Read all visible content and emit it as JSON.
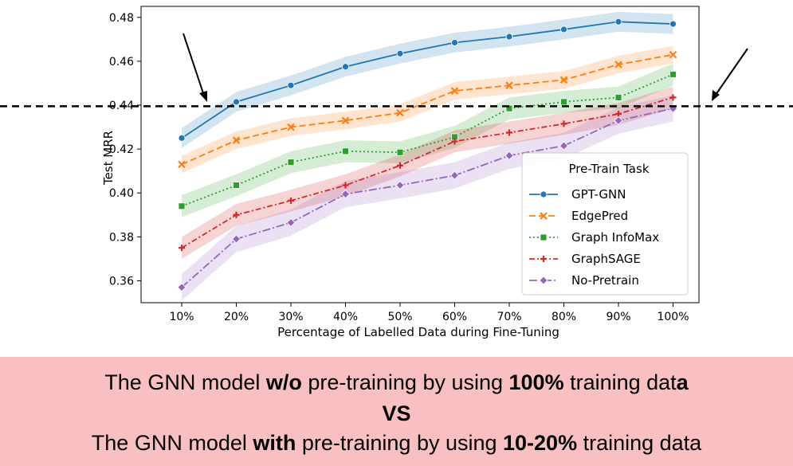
{
  "chart_data": {
    "type": "line",
    "xlabel": "Percentage of Labelled Data during Fine-Tuning",
    "ylabel": "Test MRR",
    "categories": [
      "10%",
      "20%",
      "30%",
      "40%",
      "50%",
      "60%",
      "70%",
      "80%",
      "90%",
      "100%"
    ],
    "ylim": [
      0.35,
      0.485
    ],
    "yticks": [
      "0.36",
      "0.38",
      "0.40",
      "0.42",
      "0.44",
      "0.46",
      "0.48"
    ],
    "ytick_values": [
      0.36,
      0.38,
      0.4,
      0.42,
      0.44,
      0.46,
      0.48
    ],
    "legend_title": "Pre-Train Task",
    "legend_position": "lower-right",
    "reference_line": 0.4395,
    "series": [
      {
        "name": "GPT-GNN",
        "color": "#1f77b4",
        "marker": "circle",
        "dash": "solid",
        "values": [
          0.425,
          0.4415,
          0.449,
          0.4575,
          0.4635,
          0.4685,
          0.4712,
          0.4745,
          0.478,
          0.477
        ],
        "band": 0.0045
      },
      {
        "name": "EdgePred",
        "color": "#ff7f0e",
        "marker": "x",
        "dash": "dashed",
        "values": [
          0.413,
          0.424,
          0.43,
          0.433,
          0.4365,
          0.4465,
          0.449,
          0.4515,
          0.4585,
          0.463
        ],
        "band": 0.004
      },
      {
        "name": "Graph InfoMax",
        "color": "#2ca02c",
        "marker": "square",
        "dash": "dotted",
        "values": [
          0.394,
          0.4035,
          0.414,
          0.419,
          0.4185,
          0.4255,
          0.4385,
          0.4415,
          0.4435,
          0.454
        ],
        "band": 0.005
      },
      {
        "name": "GraphSAGE",
        "color": "#d62728",
        "marker": "plus",
        "dash": "dashdot",
        "values": [
          0.375,
          0.39,
          0.3965,
          0.4035,
          0.4125,
          0.4235,
          0.4275,
          0.4315,
          0.436,
          0.4435
        ],
        "band": 0.005
      },
      {
        "name": "No-Pretrain",
        "color": "#9467bd",
        "marker": "diamond",
        "dash": "dashdot2",
        "values": [
          0.357,
          0.379,
          0.3865,
          0.3995,
          0.4035,
          0.408,
          0.417,
          0.4215,
          0.433,
          0.4385
        ],
        "band": 0.006
      }
    ]
  },
  "caption": {
    "line1_a": "The GNN model ",
    "line1_b": "w/o",
    "line1_c": " pre-training by using ",
    "line1_d": "100%",
    "line1_e": " training dat",
    "line1_f": "a",
    "line2": "VS",
    "line3_a": "The GNN model ",
    "line3_b": "with",
    "line3_c": " pre-training by using ",
    "line3_d": "10-20%",
    "line3_e": " training data"
  },
  "colors": {
    "caption_bg": "#f8c0c0",
    "reference_line": "#000000"
  }
}
